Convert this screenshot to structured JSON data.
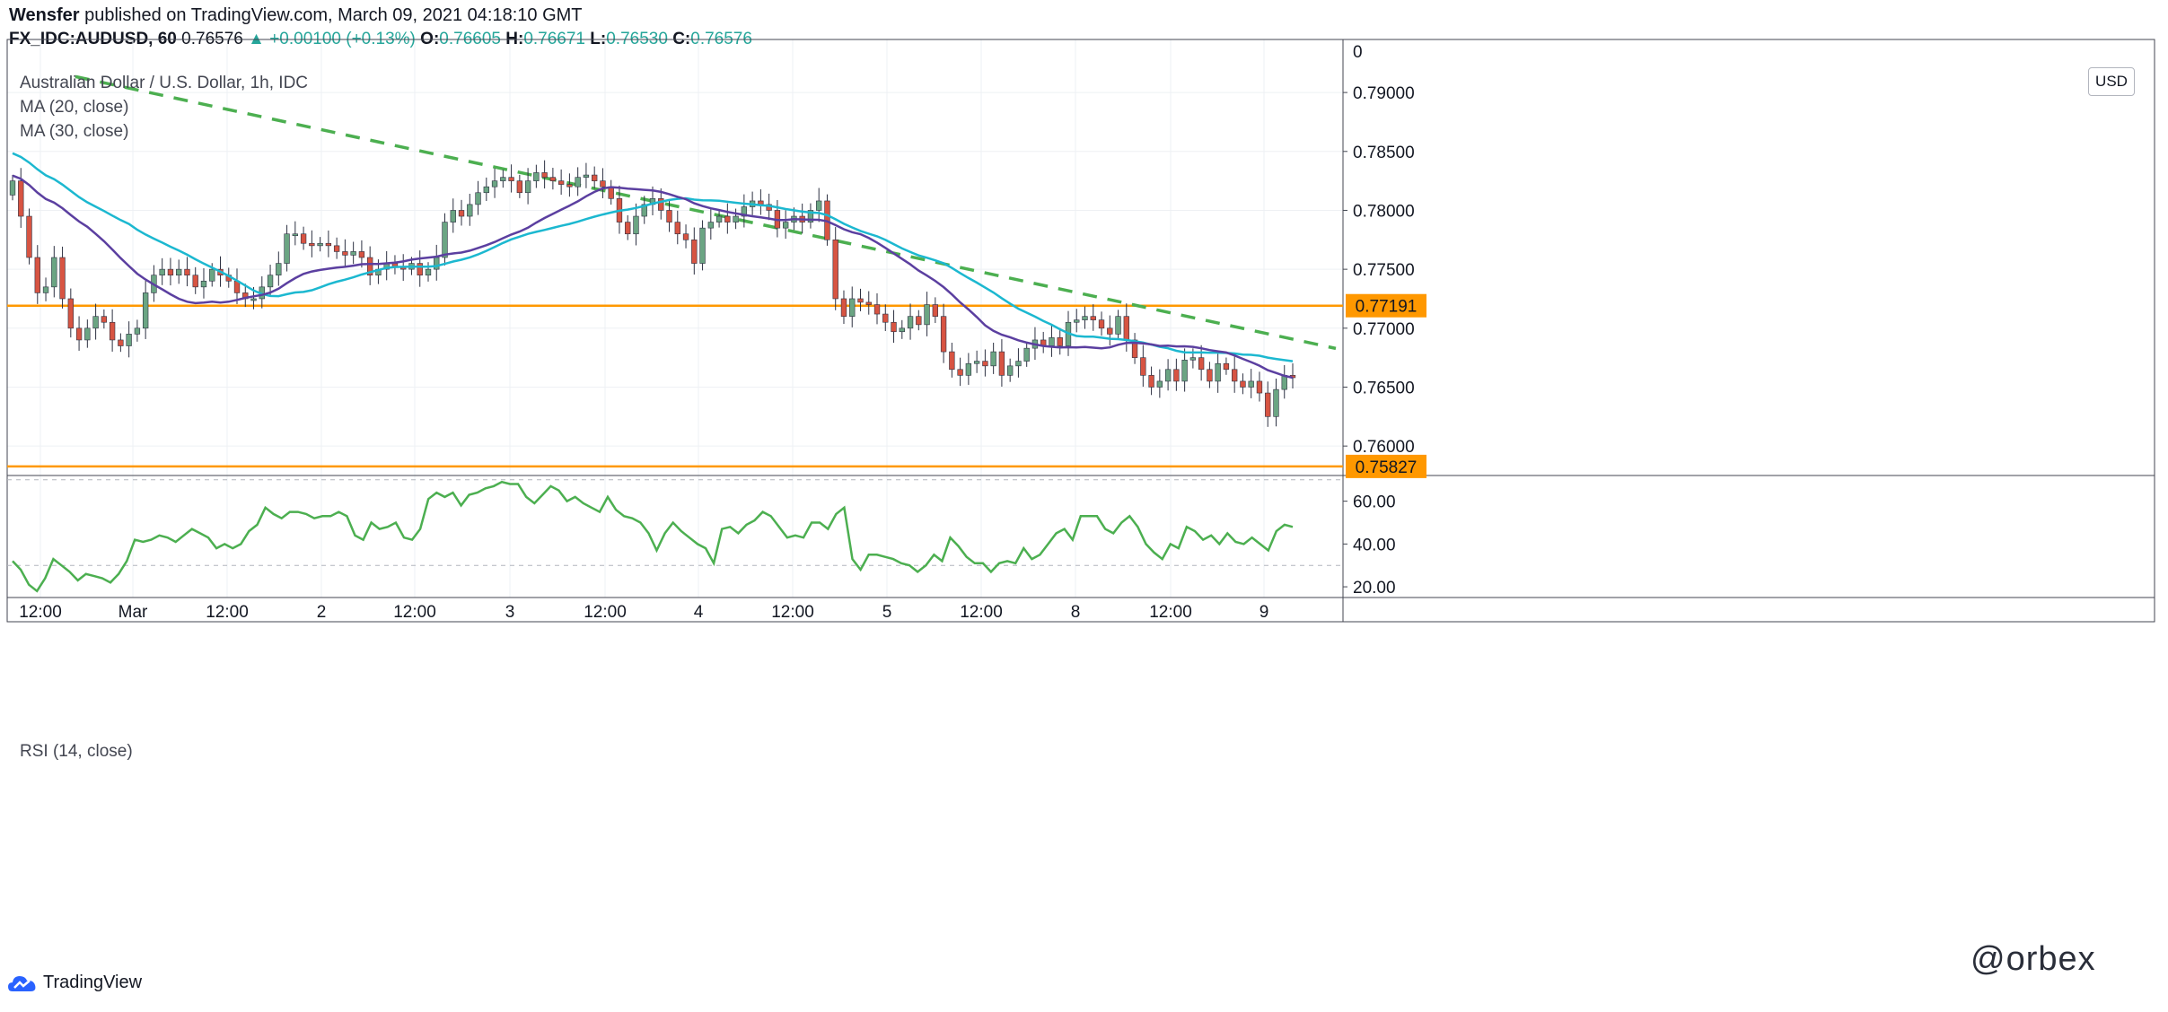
{
  "header": {
    "author": "Wensfer",
    "published_text": "published on TradingView.com, March 09, 2021 04:18:10 GMT",
    "symbol": "FX_IDC:AUDUSD, 60",
    "last": "0.76576",
    "change": "▲ +0.00100 (+0.13%)",
    "o_label": "O:",
    "o_value": "0.76605",
    "h_label": "H:",
    "h_value": "0.76671",
    "l_label": "L:",
    "l_value": "0.76530",
    "c_label": "C:",
    "c_value": "0.76576"
  },
  "legend": {
    "title": "Australian Dollar / U.S. Dollar, 1h, IDC",
    "ma20": "MA (20, close)",
    "ma30": "MA (30, close)",
    "rsi": "RSI (14, close)"
  },
  "currency": "USD",
  "footer": {
    "brand": "TradingView",
    "watermark": "@orbex"
  },
  "colors": {
    "up": "#6ba583",
    "down": "#d75442",
    "ma20": "#5b3fa0",
    "ma30": "#1cb8d0",
    "level": "#ff9800",
    "trend": "#4caf50",
    "rsi": "#4caf50"
  },
  "chart_data": [
    {
      "type": "candlestick",
      "title": "Australian Dollar / U.S. Dollar, 1h, IDC",
      "x_ticks": [
        "12:00",
        "Mar",
        "12:00",
        "2",
        "12:00",
        "3",
        "12:00",
        "4",
        "12:00",
        "5",
        "12:00",
        "8",
        "12:00",
        "9"
      ],
      "y_ticks": [
        "0.79000",
        "0.78500",
        "0.78000",
        "0.77500",
        "0.77000",
        "0.76500",
        "0.76000"
      ],
      "ylim": [
        0.7575,
        0.7945
      ],
      "price_labels": [
        "0.77191",
        "0.75827"
      ],
      "horizontal_levels": [
        0.77191,
        0.75827
      ],
      "trend_line": {
        "from": [
          0,
          0.7925
        ],
        "to": [
          140,
          0.7712
        ]
      },
      "close": [
        0.7825,
        0.7795,
        0.776,
        0.773,
        0.7735,
        0.776,
        0.7725,
        0.77,
        0.769,
        0.77,
        0.771,
        0.7705,
        0.769,
        0.7685,
        0.7695,
        0.77,
        0.773,
        0.7745,
        0.775,
        0.7745,
        0.775,
        0.7745,
        0.7735,
        0.774,
        0.775,
        0.7745,
        0.774,
        0.773,
        0.7725,
        0.7725,
        0.7735,
        0.7745,
        0.7755,
        0.778,
        0.778,
        0.7772,
        0.777,
        0.7772,
        0.777,
        0.7765,
        0.7762,
        0.7765,
        0.776,
        0.7745,
        0.775,
        0.7755,
        0.7752,
        0.775,
        0.7755,
        0.7745,
        0.775,
        0.776,
        0.779,
        0.78,
        0.7795,
        0.7805,
        0.7815,
        0.782,
        0.7825,
        0.7828,
        0.7825,
        0.7815,
        0.7825,
        0.7832,
        0.7828,
        0.7825,
        0.7822,
        0.782,
        0.7828,
        0.783,
        0.7825,
        0.782,
        0.781,
        0.779,
        0.778,
        0.7795,
        0.7805,
        0.781,
        0.78,
        0.779,
        0.778,
        0.7775,
        0.7755,
        0.7785,
        0.779,
        0.7795,
        0.779,
        0.7795,
        0.7803,
        0.7808,
        0.7805,
        0.78,
        0.7785,
        0.779,
        0.7795,
        0.779,
        0.78,
        0.7808,
        0.7775,
        0.7725,
        0.771,
        0.7725,
        0.7722,
        0.772,
        0.7712,
        0.7705,
        0.7697,
        0.77,
        0.771,
        0.7703,
        0.772,
        0.771,
        0.768,
        0.7665,
        0.766,
        0.767,
        0.7672,
        0.7668,
        0.768,
        0.766,
        0.7668,
        0.7672,
        0.7683,
        0.769,
        0.7685,
        0.7692,
        0.7685,
        0.7705,
        0.7707,
        0.771,
        0.7707,
        0.77,
        0.7695,
        0.771,
        0.769,
        0.7675,
        0.766,
        0.765,
        0.7655,
        0.7665,
        0.7655,
        0.7673,
        0.7675,
        0.7665,
        0.7655,
        0.767,
        0.7665,
        0.7655,
        0.765,
        0.7655,
        0.7645,
        0.7625,
        0.7648,
        0.766,
        0.7658
      ]
    },
    {
      "type": "line",
      "title": "RSI (14, close)",
      "y_ticks": [
        "60.00",
        "40.00",
        "20.00"
      ],
      "ylim": [
        15,
        72
      ],
      "values": [
        32,
        28,
        21,
        18,
        24,
        33,
        30,
        27,
        23,
        26,
        25,
        24,
        22,
        26,
        32,
        42,
        41,
        42,
        44,
        43,
        41,
        44,
        47,
        45,
        43,
        38,
        40,
        38,
        40,
        46,
        49,
        57,
        54,
        52,
        55,
        55,
        54,
        52,
        53,
        53,
        55,
        53,
        44,
        42,
        50,
        47,
        48,
        50,
        43,
        42,
        47,
        61,
        64,
        62,
        64,
        58,
        63,
        64,
        66,
        67,
        69,
        68,
        68,
        62,
        59,
        63,
        67,
        65,
        60,
        62,
        59,
        57,
        55,
        62,
        56,
        53,
        52,
        50,
        45,
        37,
        45,
        50,
        46,
        43,
        40,
        38,
        31,
        47,
        48,
        45,
        49,
        51,
        55,
        53,
        48,
        43,
        44,
        43,
        50,
        50,
        47,
        54,
        57,
        33,
        28,
        35,
        35,
        34,
        33,
        31,
        30,
        27,
        30,
        35,
        32,
        43,
        39,
        34,
        31,
        31,
        27,
        31,
        32,
        31,
        38,
        33,
        35,
        40,
        45,
        47,
        42,
        53,
        53,
        53,
        47,
        45,
        50,
        53,
        48,
        40,
        36,
        33,
        40,
        38,
        48,
        46,
        42,
        44,
        40,
        45,
        41,
        40,
        43,
        40,
        37,
        46,
        49,
        48
      ]
    }
  ]
}
